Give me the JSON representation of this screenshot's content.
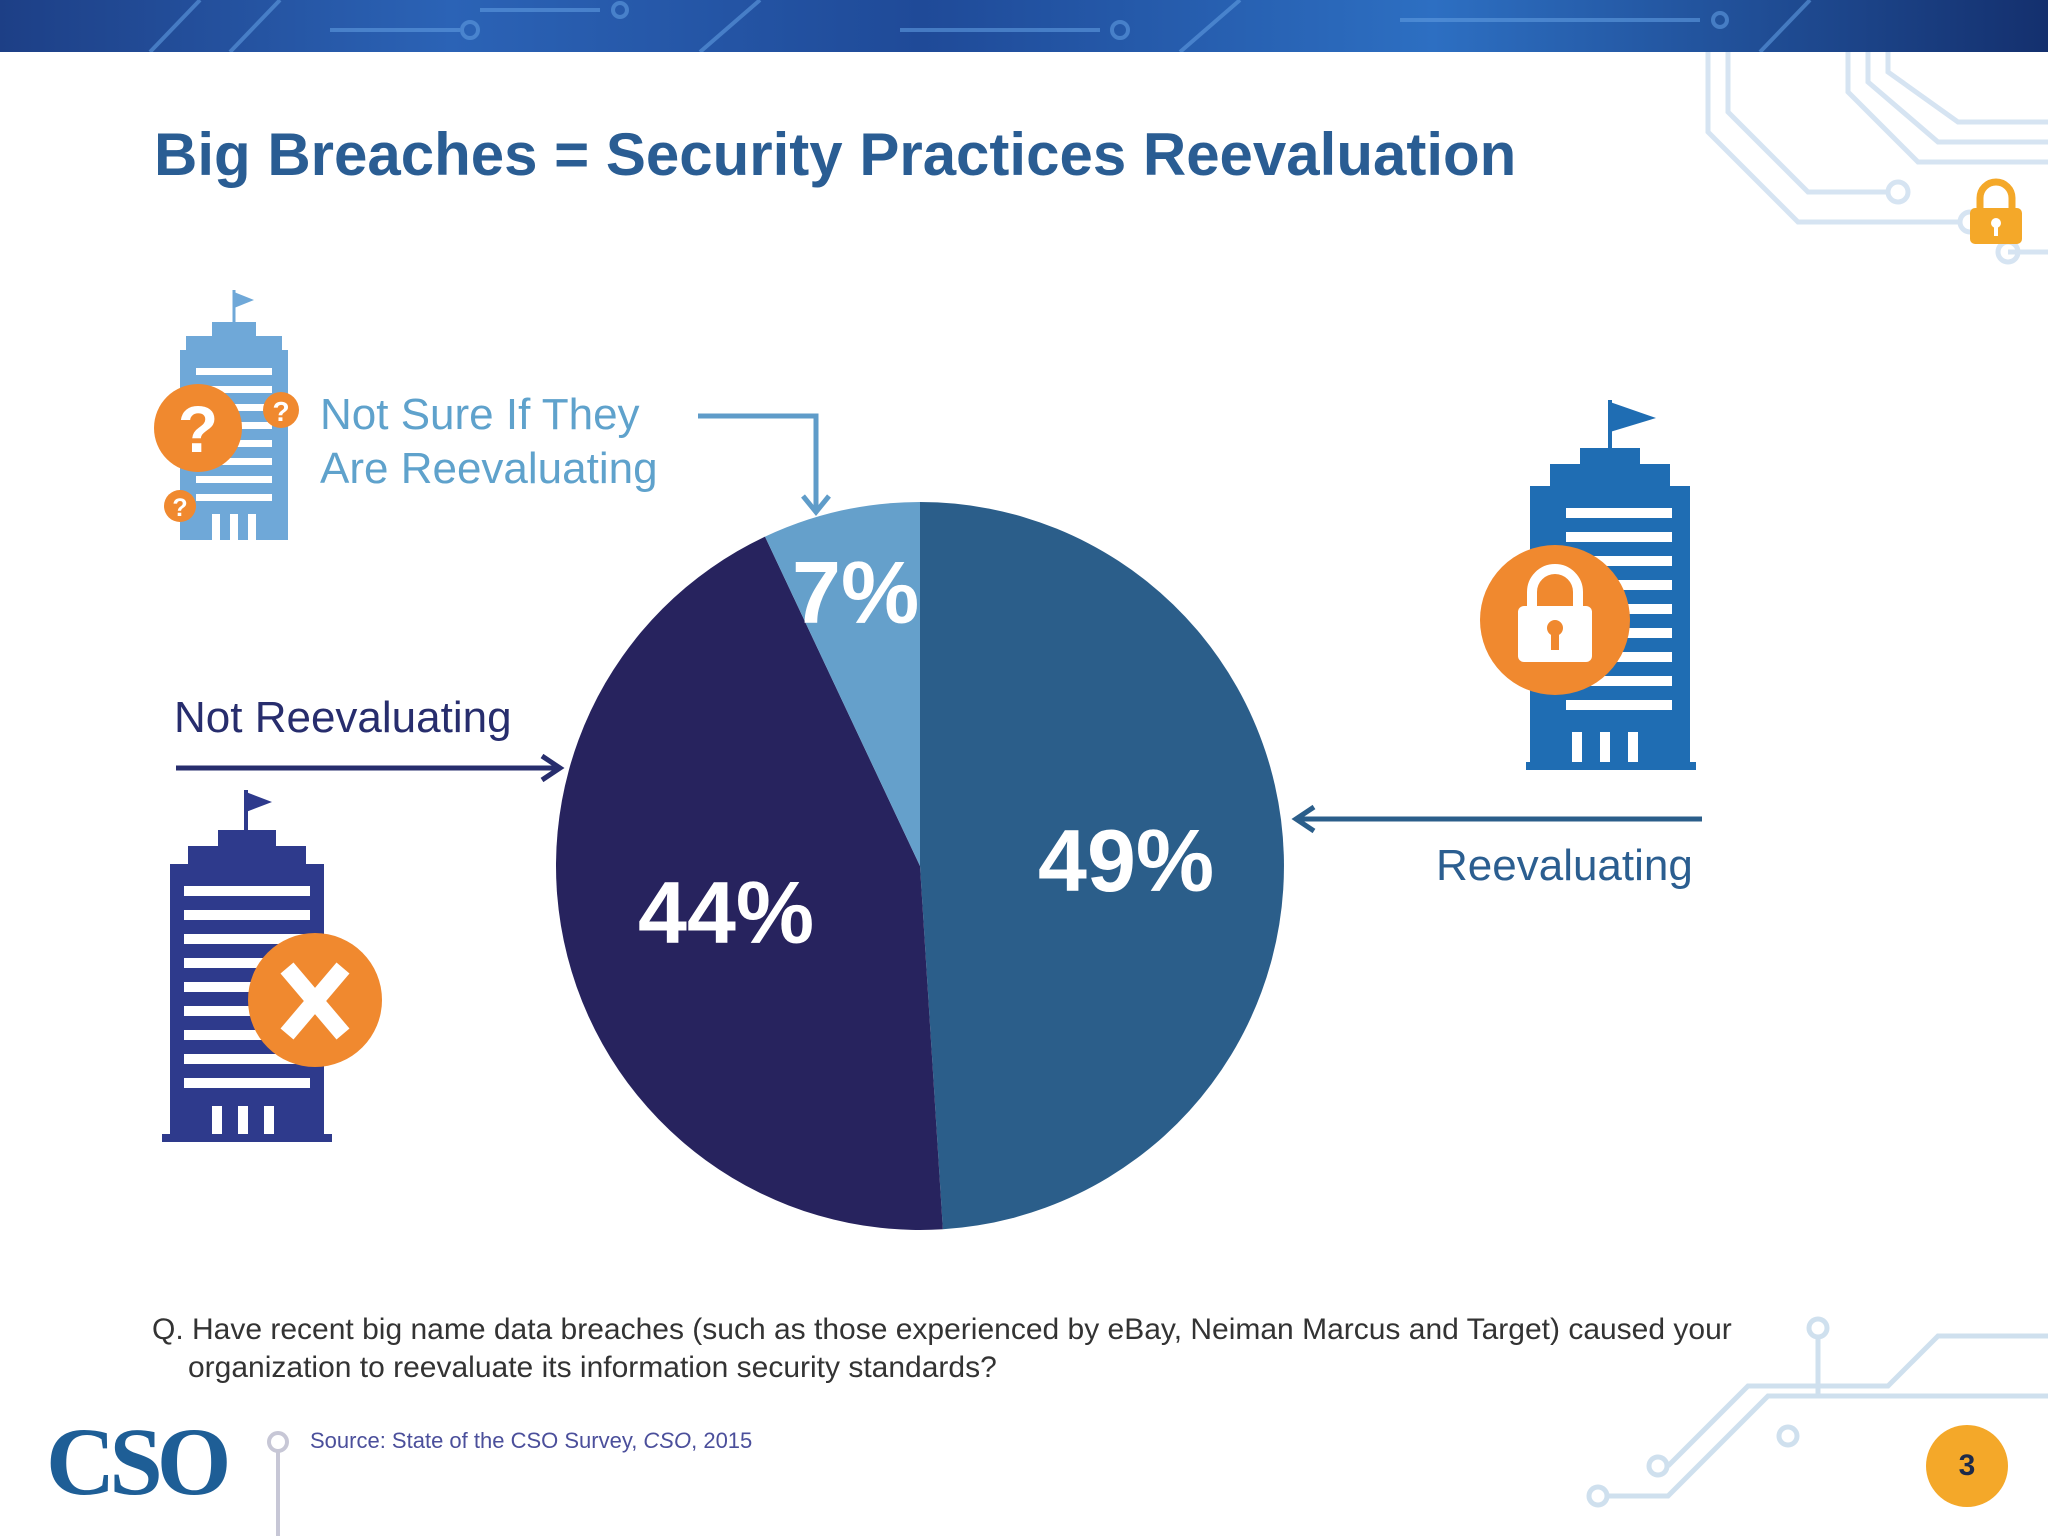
{
  "slide": {
    "title": "Big Breaches = Security Practices Reevaluation",
    "page_number": "3"
  },
  "labels": {
    "not_sure_line1": "Not Sure If They",
    "not_sure_line2": "Are Reevaluating",
    "not_reevaluating": "Not Reevaluating",
    "reevaluating": "Reevaluating"
  },
  "question": {
    "line1": "Q. Have recent big name data breaches (such as those experienced by eBay, Neiman Marcus and Target) caused your",
    "line2": "organization to reevaluate its information security standards?"
  },
  "source": {
    "prefix": "Source: State of the CSO Survey, ",
    "publication": "CSO",
    "suffix": ", 2015"
  },
  "logo": {
    "text": "CSO"
  },
  "colors": {
    "title": "#2a5d93",
    "reevaluating": "#2b5e8a",
    "not_reevaluating": "#27235e",
    "not_sure": "#65a0cb",
    "accent_orange": "#f0892f",
    "page_badge": "#f4a829"
  },
  "icons": [
    "lock-icon",
    "question-icon",
    "x-icon",
    "building-icon",
    "flag-icon"
  ],
  "chart_data": {
    "type": "pie",
    "start_angle": "12 o'clock, clockwise",
    "slices": [
      {
        "label": "Reevaluating",
        "value": 49,
        "display": "49%",
        "color": "#2b5e8a"
      },
      {
        "label": "Not Reevaluating",
        "value": 44,
        "display": "44%",
        "color": "#27235e"
      },
      {
        "label": "Not Sure If They Are Reevaluating",
        "value": 7,
        "display": "7%",
        "color": "#65a0cb"
      }
    ]
  }
}
